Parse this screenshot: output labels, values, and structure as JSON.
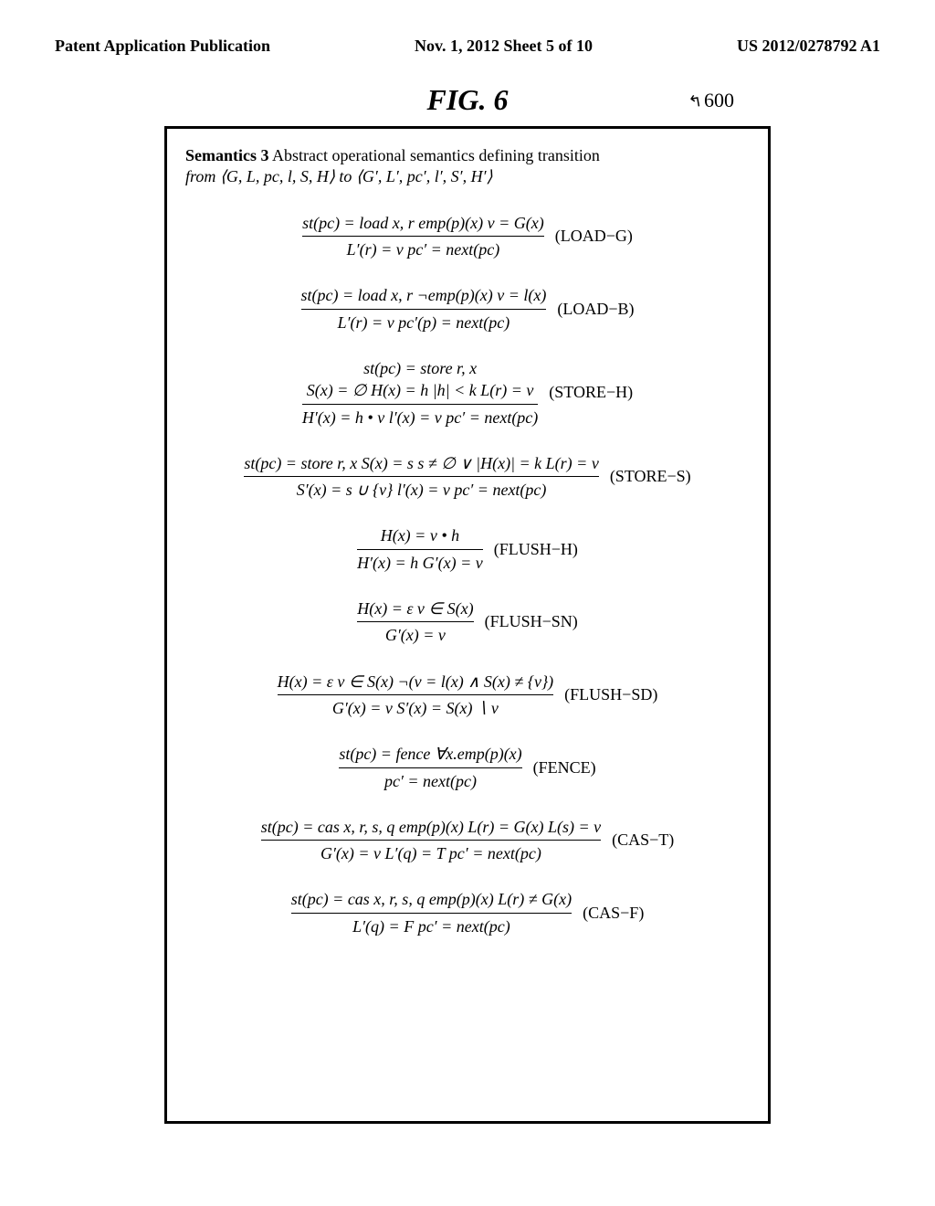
{
  "header": {
    "left": "Patent Application Publication",
    "center": "Nov. 1, 2012  Sheet 5 of 10",
    "right": "US 2012/0278792 A1"
  },
  "figure": {
    "label": "FIG.  6",
    "ref": "600"
  },
  "semTitle": {
    "bold": "Semantics 3",
    "rest1": "   Abstract operational semantics defining transition",
    "rest2": "from  ⟨G, L, pc, l, S, H⟩  to  ⟨G′, L′, pc′, l′, S′, H′⟩"
  },
  "rules": [
    {
      "top": "st(pc) = load x, r      emp(p)(x)    v = G(x)",
      "bot": "L′(r) = v    pc′ = next(pc)",
      "label": "(LOAD−G)"
    },
    {
      "top": "st(pc) = load x, r    ¬emp(p)(x)    v = l(x)",
      "bot": "L′(r) = v    pc′(p) = next(pc)",
      "label": "(LOAD−B)"
    },
    {
      "pretop": "st(pc) = store r, x",
      "top": "S(x) = ∅   H(x) = h    |h| < k    L(r) = v",
      "bot": "H′(x) = h • v    l′(x) = v    pc′ = next(pc)",
      "label": "(STORE−H)"
    },
    {
      "top": "st(pc) = store r, x    S(x) = s    s ≠ ∅ ∨ |H(x)| = k    L(r) = v",
      "bot": "S′(x) = s ∪ {v}    l′(x) = v    pc′ = next(pc)",
      "label": "(STORE−S)"
    },
    {
      "top": "H(x) = v • h",
      "bot": "H′(x) = h   G′(x) = v",
      "label": "(FLUSH−H)"
    },
    {
      "top": "H(x) = ε    v ∈ S(x)",
      "bot": "G′(x) = v",
      "label": "(FLUSH−SN)"
    },
    {
      "top": "H(x) = ε    v ∈ S(x)    ¬(v = l(x) ∧ S(x) ≠ {v})",
      "bot": "G′(x) = v    S′(x) = S(x) ∖ v",
      "label": "(FLUSH−SD)"
    },
    {
      "top": "st(pc) = fence    ∀x.emp(p)(x)",
      "bot": "pc′ = next(pc)",
      "label": "(FENCE)"
    },
    {
      "top": "st(pc) = cas x, r, s, q    emp(p)(x)    L(r) = G(x)    L(s) = v",
      "bot": "G′(x) = v    L′(q) = T    pc′ = next(pc)",
      "label": "(CAS−T)"
    },
    {
      "top": "st(pc) = cas x, r, s, q    emp(p)(x)    L(r) ≠ G(x)",
      "bot": "L′(q) = F    pc′ = next(pc)",
      "label": "(CAS−F)"
    }
  ]
}
